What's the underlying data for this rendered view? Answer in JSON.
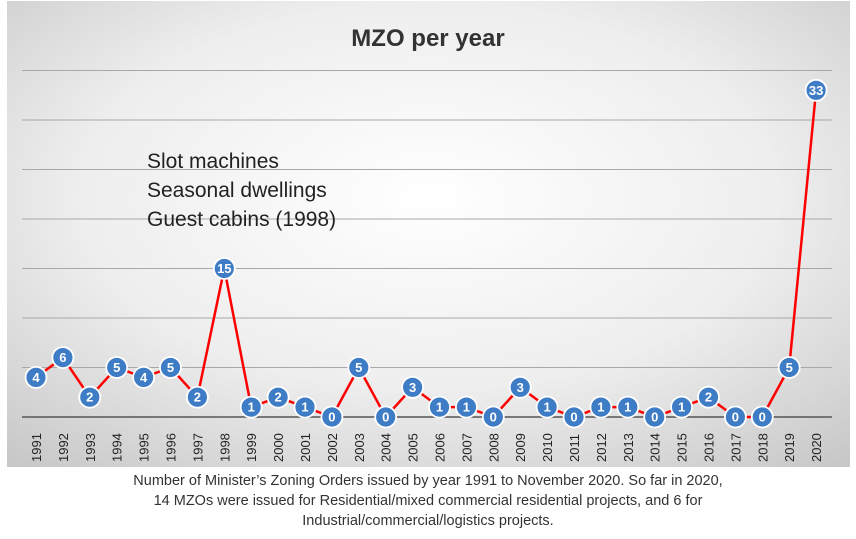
{
  "chart_data": {
    "type": "line",
    "title": "MZO per year",
    "xlabel": "",
    "ylabel": "",
    "categories": [
      "1991",
      "1992",
      "1993",
      "1994",
      "1995",
      "1996",
      "1997",
      "1998",
      "1999",
      "2000",
      "2001",
      "2002",
      "2003",
      "2004",
      "2005",
      "2006",
      "2007",
      "2008",
      "2009",
      "2010",
      "2011",
      "2012",
      "2013",
      "2014",
      "2015",
      "2016",
      "2017",
      "2018",
      "2019",
      "2020"
    ],
    "series": [
      {
        "values": [
          4,
          6,
          2,
          5,
          4,
          5,
          2,
          15,
          1,
          2,
          1,
          0,
          5,
          0,
          3,
          1,
          1,
          0,
          3,
          1,
          0,
          1,
          1,
          0,
          1,
          2,
          0,
          0,
          5,
          33
        ]
      }
    ],
    "ylim": [
      0,
      35
    ],
    "y_ticks_labeled": false,
    "grid": true,
    "legend": "none",
    "data_labels": true,
    "annotations": [
      {
        "lines": [
          "Slot machines",
          "Seasonal dwellings",
          "Guest cabins (1998)"
        ]
      }
    ],
    "colors": {
      "line": "#ff0000",
      "marker": "#3e7cc6",
      "marker_text": "#ffffff",
      "gridline": "#a8a8a8",
      "axis": "#555555",
      "title": "#333333"
    }
  },
  "caption": {
    "lines": [
      "Number of Minister’s Zoning Orders issued by year 1991 to November 2020. So far in 2020,",
      "14 MZOs were issued for Residential/mixed commercial residential projects, and 6 for",
      "Industrial/commercial/logistics projects."
    ]
  }
}
